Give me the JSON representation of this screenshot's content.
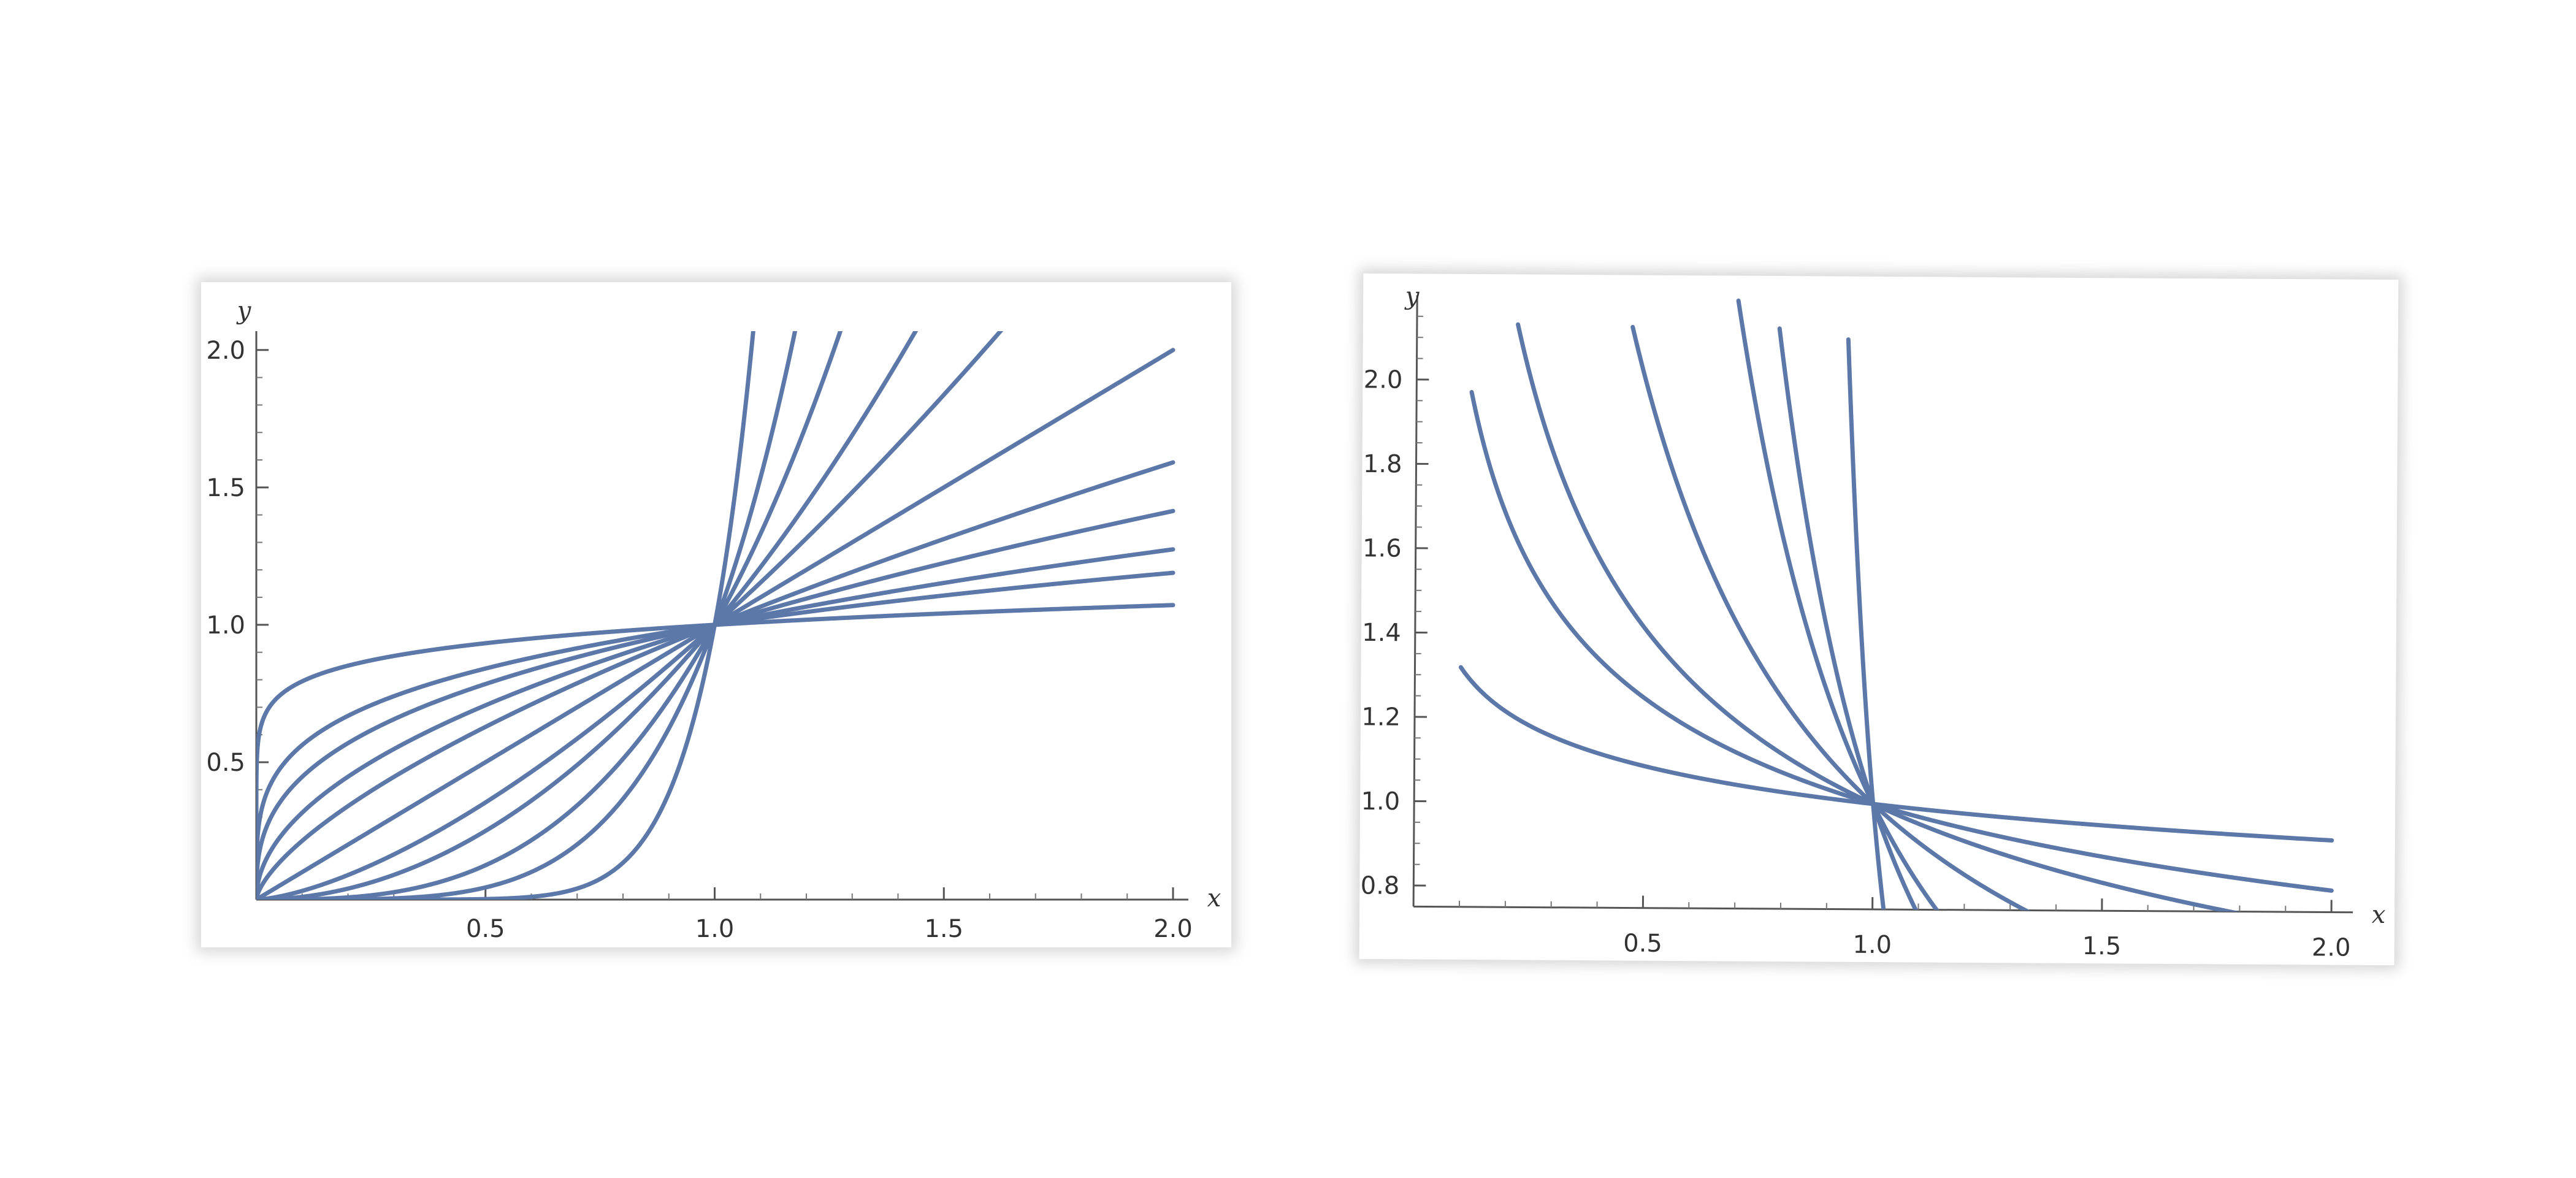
{
  "chart_data": [
    {
      "type": "line",
      "xlabel": "x",
      "ylabel": "y",
      "xlim": [
        0,
        2
      ],
      "ylim": [
        0,
        2.1
      ],
      "xticks": [
        0.5,
        1.0,
        1.5,
        2.0
      ],
      "yticks": [
        0.5,
        1.0,
        1.5,
        2.0
      ],
      "xtick_labels": [
        "0.5",
        "1.0",
        "1.5",
        "2.0"
      ],
      "ytick_labels": [
        "0.5",
        "1.0",
        "1.5",
        "2.0"
      ],
      "grid": false,
      "color": "#5b78a9",
      "curve_family": "y = x^p",
      "series": [
        {
          "p": 0.1
        },
        {
          "p": 0.25
        },
        {
          "p": 0.35
        },
        {
          "p": 0.5
        },
        {
          "p": 0.67
        },
        {
          "p": 1.0
        },
        {
          "p": 1.5
        },
        {
          "p": 2.0
        },
        {
          "p": 3.0
        },
        {
          "p": 4.5
        },
        {
          "p": 9.0
        }
      ]
    },
    {
      "type": "line",
      "xlabel": "x",
      "ylabel": "y",
      "xlim": [
        0,
        2
      ],
      "ylim": [
        0.75,
        2.2
      ],
      "xticks": [
        0.5,
        1.0,
        1.5,
        2.0
      ],
      "yticks": [
        0.8,
        1.0,
        1.2,
        1.4,
        1.6,
        1.8,
        2.0
      ],
      "xtick_labels": [
        "0.5",
        "1.0",
        "1.5",
        "2.0"
      ],
      "ytick_labels": [
        "0.8",
        "1.0",
        "1.2",
        "1.4",
        "1.6",
        "1.8",
        "2.0"
      ],
      "grid": false,
      "color": "#5b78a9",
      "curve_family": "y = x^-p",
      "series": [
        {
          "p": 0.12,
          "x_start": 0.1
        },
        {
          "p": 0.32,
          "x_start": 0.12
        },
        {
          "p": 0.5,
          "x_start": 0.22
        },
        {
          "p": 1.0,
          "x_start": 0.47
        },
        {
          "p": 2.2,
          "x_start": 0.7
        },
        {
          "p": 3.2,
          "x_start": 0.79
        },
        {
          "p": 12.0,
          "x_start": 0.94
        }
      ]
    }
  ]
}
